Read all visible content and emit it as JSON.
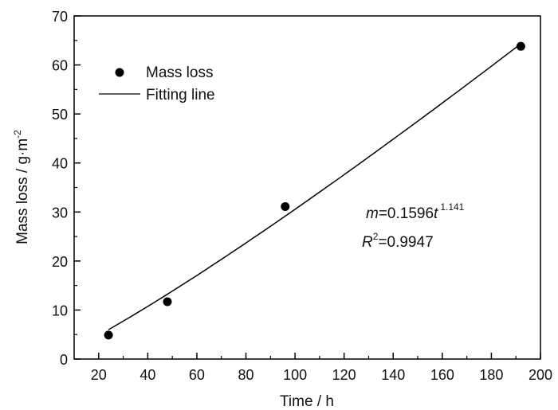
{
  "chart_data": {
    "type": "scatter",
    "title": "",
    "xlabel": "Time / h",
    "ylabel_main": "Mass loss / g·m",
    "ylabel_sup": "-2",
    "xlim": [
      10,
      200
    ],
    "ylim": [
      0,
      70
    ],
    "xticks": [
      20,
      40,
      60,
      80,
      100,
      120,
      140,
      160,
      180,
      200
    ],
    "xtick_labels": [
      "20",
      "40",
      "60",
      "80",
      "100",
      "120",
      "140",
      "160",
      "180",
      "200"
    ],
    "yticks": [
      0,
      10,
      20,
      30,
      40,
      50,
      60,
      70
    ],
    "ytick_labels": [
      "0",
      "10",
      "20",
      "30",
      "40",
      "50",
      "60",
      "70"
    ],
    "grid": false,
    "legend_position": "top-left",
    "series": [
      {
        "name": "Mass loss",
        "kind": "scatter",
        "x": [
          24,
          48,
          96,
          192
        ],
        "y": [
          4.9,
          11.7,
          31.1,
          63.8
        ]
      },
      {
        "name": "Fitting line",
        "kind": "line",
        "model": {
          "a": 0.1596,
          "b": 1.141
        },
        "x_range": [
          24,
          192
        ]
      }
    ],
    "annotations": {
      "equation_var": "m",
      "equation_mid": "=0.1596",
      "equation_t": "t",
      "equation_exp": "1.141",
      "r2_var": "R",
      "r2_sup": "2",
      "r2_value": "=0.9947"
    },
    "colors": {
      "marker": "#000000",
      "line": "#000000",
      "axes": "#000000"
    }
  }
}
